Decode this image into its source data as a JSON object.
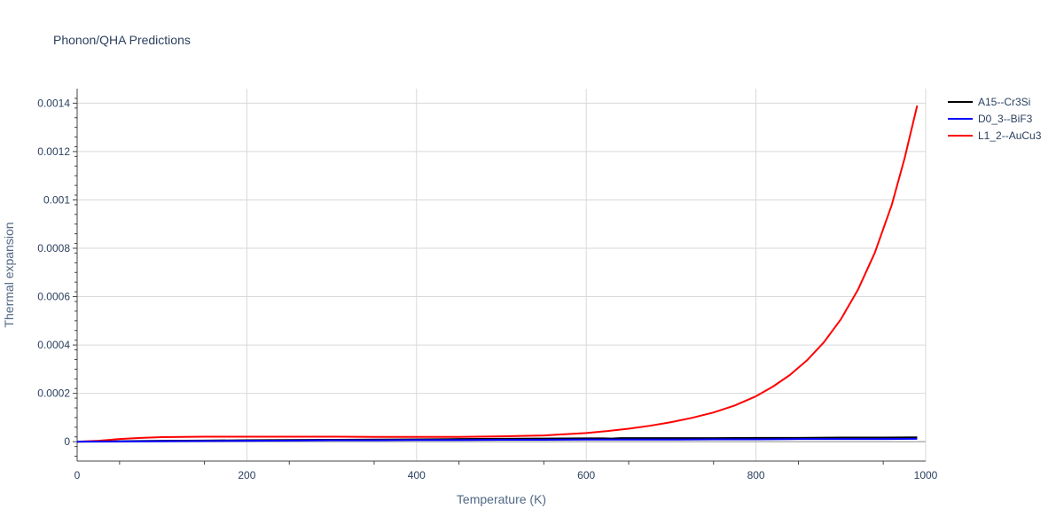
{
  "chart_data": {
    "type": "line",
    "title": "Phonon/QHA Predictions",
    "xlabel": "Temperature (K)",
    "ylabel": "Thermal expansion",
    "xlim": [
      0,
      1000
    ],
    "ylim": [
      -8e-05,
      0.00146
    ],
    "x_ticks": [
      0,
      200,
      400,
      600,
      800,
      1000
    ],
    "x_tick_labels": [
      "0",
      "200",
      "400",
      "600",
      "800",
      "1000"
    ],
    "y_ticks": [
      0,
      0.0002,
      0.0004,
      0.0006,
      0.0008,
      0.001,
      0.0012,
      0.0014
    ],
    "y_tick_labels": [
      "0",
      "0.0002",
      "0.0004",
      "0.0006",
      "0.0008",
      "0.001",
      "0.0012",
      "0.0014"
    ],
    "grid": true,
    "legend_position": "top-right",
    "series": [
      {
        "name": "A15--Cr3Si",
        "color": "#000000",
        "x": [
          0,
          50,
          100,
          150,
          200,
          250,
          300,
          350,
          400,
          450,
          500,
          550,
          600,
          620,
          630,
          640,
          700,
          750,
          800,
          850,
          900,
          950,
          990
        ],
        "y": [
          0,
          2e-06,
          4e-06,
          5e-06,
          6e-06,
          7e-06,
          8e-06,
          9e-06,
          1e-05,
          1.1e-05,
          1.2e-05,
          1.3e-05,
          1.4e-05,
          1.4e-05,
          1.3e-05,
          1.5e-05,
          1.5e-05,
          1.5e-05,
          1.6e-05,
          1.6e-05,
          1.7e-05,
          1.7e-05,
          1.8e-05
        ]
      },
      {
        "name": "D0_3--BiF3",
        "color": "#0000ff",
        "x": [
          0,
          50,
          100,
          150,
          200,
          250,
          300,
          350,
          400,
          450,
          500,
          550,
          600,
          650,
          700,
          750,
          800,
          850,
          900,
          950,
          990
        ],
        "y": [
          0,
          1e-06,
          2e-06,
          3e-06,
          4e-06,
          5e-06,
          6e-06,
          6e-06,
          7e-06,
          7e-06,
          8e-06,
          8e-06,
          9e-06,
          9e-06,
          9e-06,
          1e-05,
          1e-05,
          1.1e-05,
          1.1e-05,
          1.1e-05,
          1.2e-05
        ]
      },
      {
        "name": "L1_2--AuCu3",
        "color": "#ff0000",
        "x": [
          0,
          25,
          50,
          75,
          100,
          125,
          150,
          175,
          200,
          250,
          300,
          350,
          400,
          450,
          500,
          550,
          600,
          625,
          650,
          675,
          700,
          725,
          750,
          775,
          800,
          820,
          840,
          860,
          880,
          900,
          920,
          940,
          960,
          975,
          990
        ],
        "y": [
          0,
          4e-06,
          1.1e-05,
          1.6e-05,
          1.9e-05,
          2e-05,
          2.1e-05,
          2.1e-05,
          2.1e-05,
          2.1e-05,
          2.1e-05,
          2e-05,
          2e-05,
          2e-05,
          2.2e-05,
          2.6e-05,
          3.6e-05,
          4.4e-05,
          5.4e-05,
          6.6e-05,
          8.1e-05,
          9.9e-05,
          0.000121,
          0.00015,
          0.000188,
          0.000228,
          0.000276,
          0.000336,
          0.000411,
          0.000506,
          0.000627,
          0.000781,
          0.000979,
          0.00117,
          0.00139
        ]
      }
    ]
  }
}
